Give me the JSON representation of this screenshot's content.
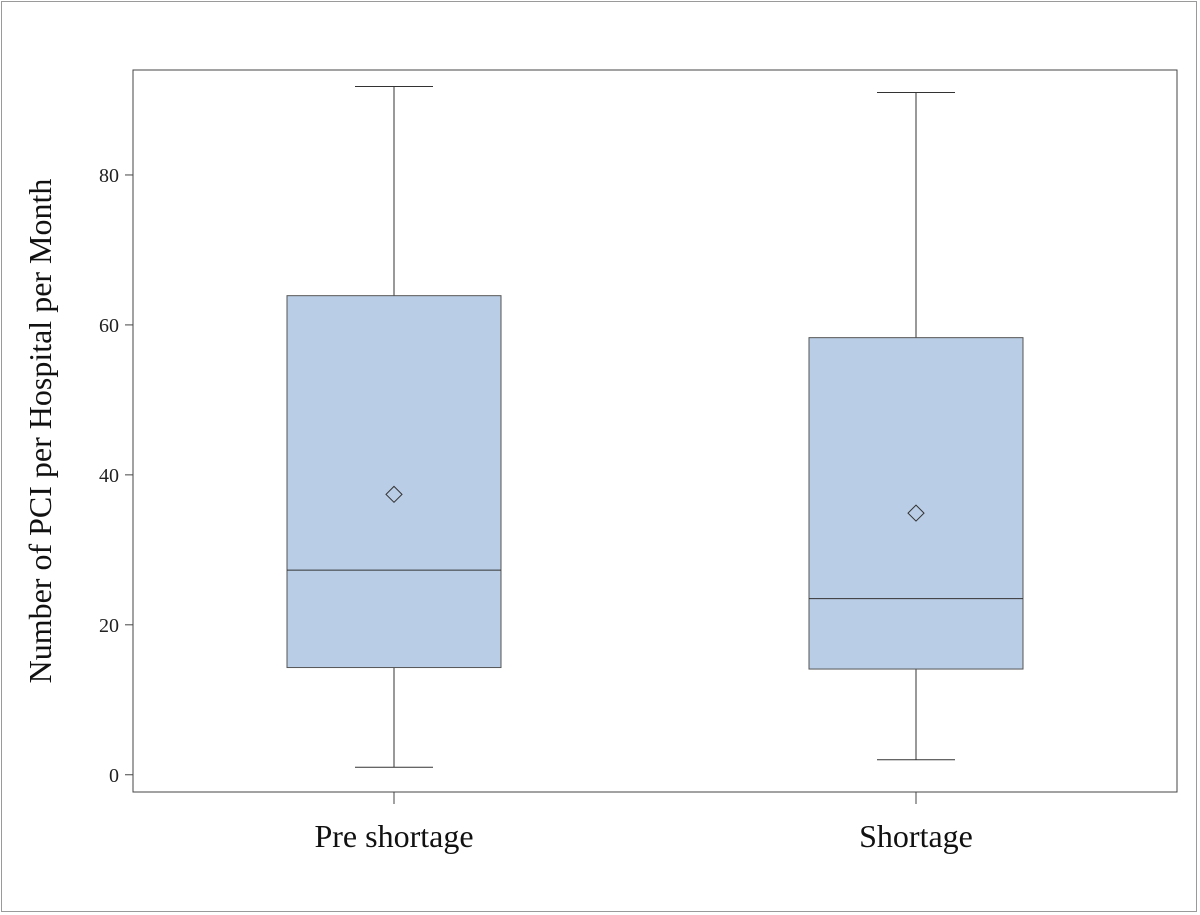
{
  "chart_data": {
    "type": "boxplot",
    "title": "",
    "xlabel": "",
    "ylabel": "Number of PCI per Hospital per Month",
    "ylim": [
      -2.3,
      94
    ],
    "yticks": [
      0,
      20,
      40,
      60,
      80
    ],
    "grid": false,
    "categories": [
      "Pre shortage",
      "Shortage"
    ],
    "boxes": [
      {
        "name": "Pre shortage",
        "whisker_low": 1,
        "q1": 14.3,
        "median": 27.3,
        "q3": 63.9,
        "whisker_high": 91.8,
        "mean": 37.4
      },
      {
        "name": "Shortage",
        "whisker_low": 2,
        "q1": 14.1,
        "median": 23.5,
        "q3": 58.3,
        "whisker_high": 91,
        "mean": 34.9
      }
    ],
    "colors": {
      "box_fill": "#b9cde6",
      "box_stroke": "#555555",
      "line": "#333333"
    }
  }
}
